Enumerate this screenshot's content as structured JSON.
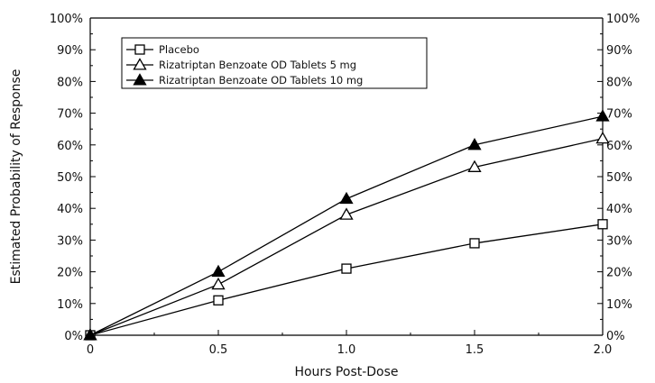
{
  "chart_data": {
    "type": "line",
    "xlabel": "Hours Post-Dose",
    "ylabel": "Estimated Probability of Response",
    "x": [
      0,
      0.5,
      1.0,
      1.5,
      2.0
    ],
    "x_tick_labels": [
      "0",
      "0.5",
      "1.0",
      "1.5",
      "2.0"
    ],
    "xlim": [
      0,
      2.0
    ],
    "ylim": [
      0,
      100
    ],
    "y_ticks": [
      0,
      10,
      20,
      30,
      40,
      50,
      60,
      70,
      80,
      90,
      100
    ],
    "y_tick_labels": [
      "0%",
      "10%",
      "20%",
      "30%",
      "40%",
      "50%",
      "60%",
      "70%",
      "80%",
      "90%",
      "100%"
    ],
    "right_axis_mirrored": true,
    "grid": false,
    "legend_position": "top-left",
    "series": [
      {
        "name": "Placebo",
        "marker": "open-square",
        "values": [
          0,
          11,
          21,
          29,
          35
        ]
      },
      {
        "name": "Rizatriptan Benzoate OD Tablets 5 mg",
        "marker": "open-triangle",
        "values": [
          0,
          16,
          38,
          53,
          62
        ]
      },
      {
        "name": "Rizatriptan Benzoate OD Tablets 10 mg",
        "marker": "filled-triangle",
        "values": [
          0,
          20,
          43,
          60,
          69
        ]
      }
    ]
  }
}
